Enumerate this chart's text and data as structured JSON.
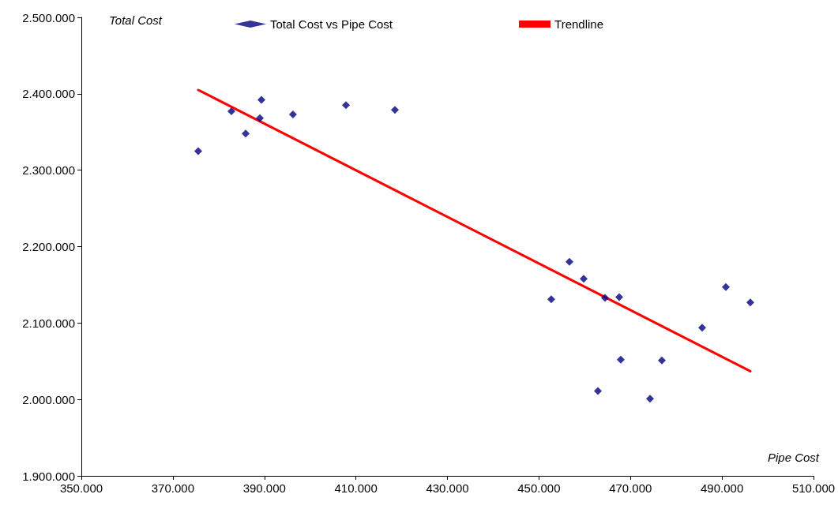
{
  "chart_data": {
    "type": "scatter",
    "xlabel": "Pipe Cost",
    "ylabel": "Total Cost",
    "x": [
      375540,
      382790,
      385900,
      389010,
      389350,
      396250,
      407820,
      418520,
      452690,
      456660,
      459770,
      464430,
      467540,
      467880,
      462880,
      474270,
      476860,
      485660,
      490840,
      496190
    ],
    "series": [
      {
        "name": "Total Cost vs Pipe Cost",
        "color": "#000080",
        "marker": "diamond",
        "values": [
          2325000,
          2377000,
          2348000,
          2368000,
          2392000,
          2373000,
          2385000,
          2379000,
          2131000,
          2180000,
          2158000,
          2133000,
          2134000,
          2052000,
          2011000,
          2001000,
          2051000,
          2094000,
          2147000,
          2127000
        ]
      },
      {
        "name": "Trendline",
        "type": "line",
        "color": "#ff0000",
        "line_style": "solid",
        "marker": "none",
        "x": [
          375540,
          496190
        ],
        "values": [
          2405000,
          2037000
        ]
      }
    ],
    "xlim": [
      350000,
      510000
    ],
    "xticks": [
      {
        "value": 350000,
        "label": "350.000"
      },
      {
        "value": 370000,
        "label": "370.000"
      },
      {
        "value": 390000,
        "label": "390.000"
      },
      {
        "value": 410000,
        "label": "410.000"
      },
      {
        "value": 430000,
        "label": "430.000"
      },
      {
        "value": 450000,
        "label": "450.000"
      },
      {
        "value": 470000,
        "label": "470.000"
      },
      {
        "value": 490000,
        "label": "490.000"
      },
      {
        "value": 510000,
        "label": "510.000"
      }
    ],
    "ylim": [
      1900000,
      2500000
    ],
    "yticks": [
      {
        "value": 1900000,
        "label": "1.900.000"
      },
      {
        "value": 2000000,
        "label": "2.000.000"
      },
      {
        "value": 2100000,
        "label": "2.100.000"
      },
      {
        "value": 2200000,
        "label": "2.200.000"
      },
      {
        "value": 2300000,
        "label": "2.300.000"
      },
      {
        "value": 2400000,
        "label": "2.400.000"
      },
      {
        "value": 2500000,
        "label": "2.500.000"
      }
    ],
    "grid": false,
    "legend": "top"
  }
}
